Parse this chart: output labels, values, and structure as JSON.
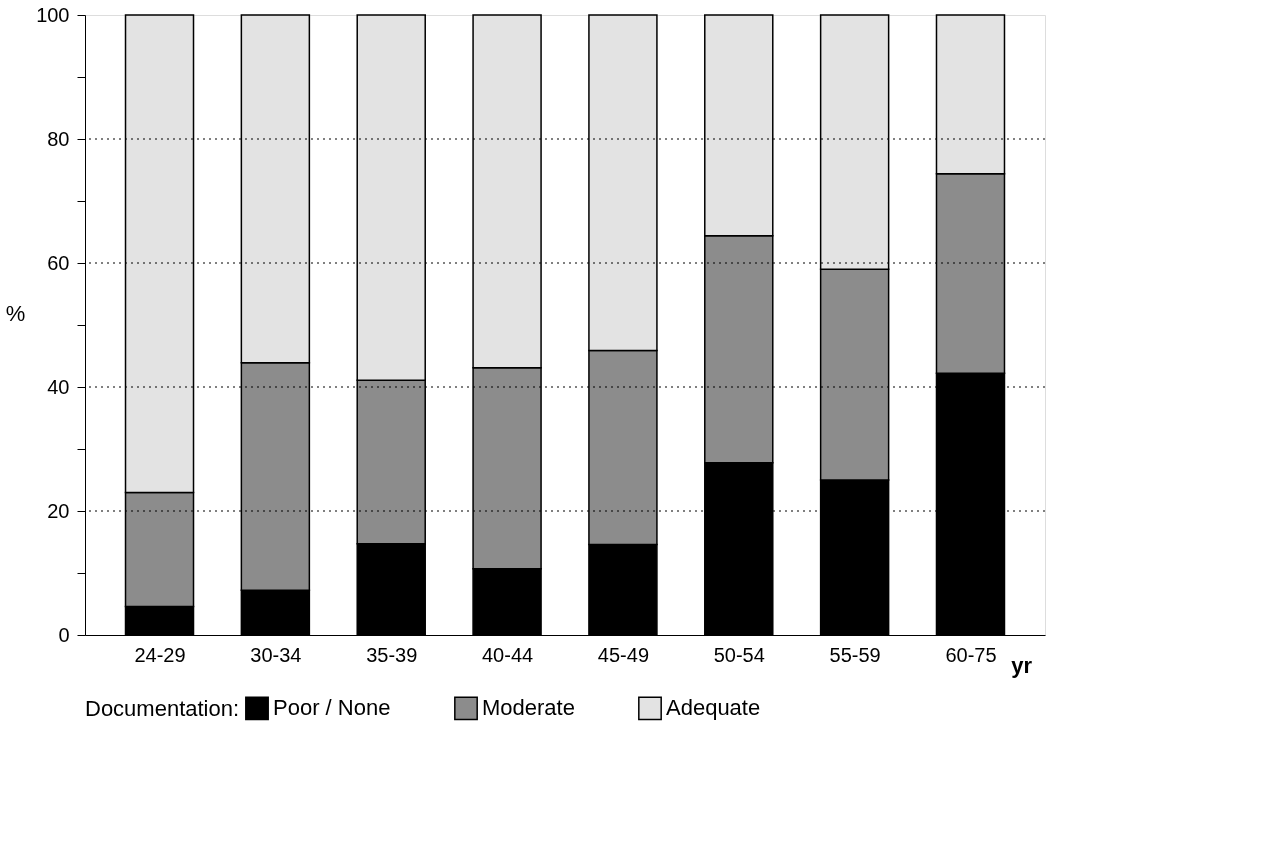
{
  "chart_data": {
    "type": "bar",
    "stacked": true,
    "categories": [
      "24-29",
      "30-34",
      "35-39",
      "40-44",
      "45-49",
      "50-54",
      "55-59",
      "60-75"
    ],
    "xlabel": "yr",
    "ylabel": "%",
    "legend_title": "Documentation:",
    "series": [
      {
        "name": "Poor / None",
        "color": "#000000",
        "values": [
          4.6,
          7.2,
          14.7,
          10.7,
          14.6,
          27.8,
          25.0,
          42.2
        ]
      },
      {
        "name": "Moderate",
        "color": "#8c8c8c",
        "values": [
          18.4,
          36.7,
          26.4,
          32.4,
          31.3,
          36.6,
          34.0,
          32.2
        ]
      },
      {
        "name": "Adequate",
        "color": "#e3e3e3",
        "values": [
          77.0,
          56.1,
          58.9,
          56.9,
          54.1,
          35.6,
          41.0,
          25.6
        ]
      }
    ],
    "ylim": [
      0,
      100
    ],
    "yticks": [
      0,
      {
        "value": 10,
        "label": null
      },
      20,
      {
        "value": 30,
        "label": null
      },
      40,
      {
        "value": 50,
        "label": null
      },
      60,
      {
        "value": 70,
        "label": null
      },
      80,
      {
        "value": 90,
        "label": null
      },
      100
    ],
    "grid": "y",
    "legend": "bottom"
  }
}
